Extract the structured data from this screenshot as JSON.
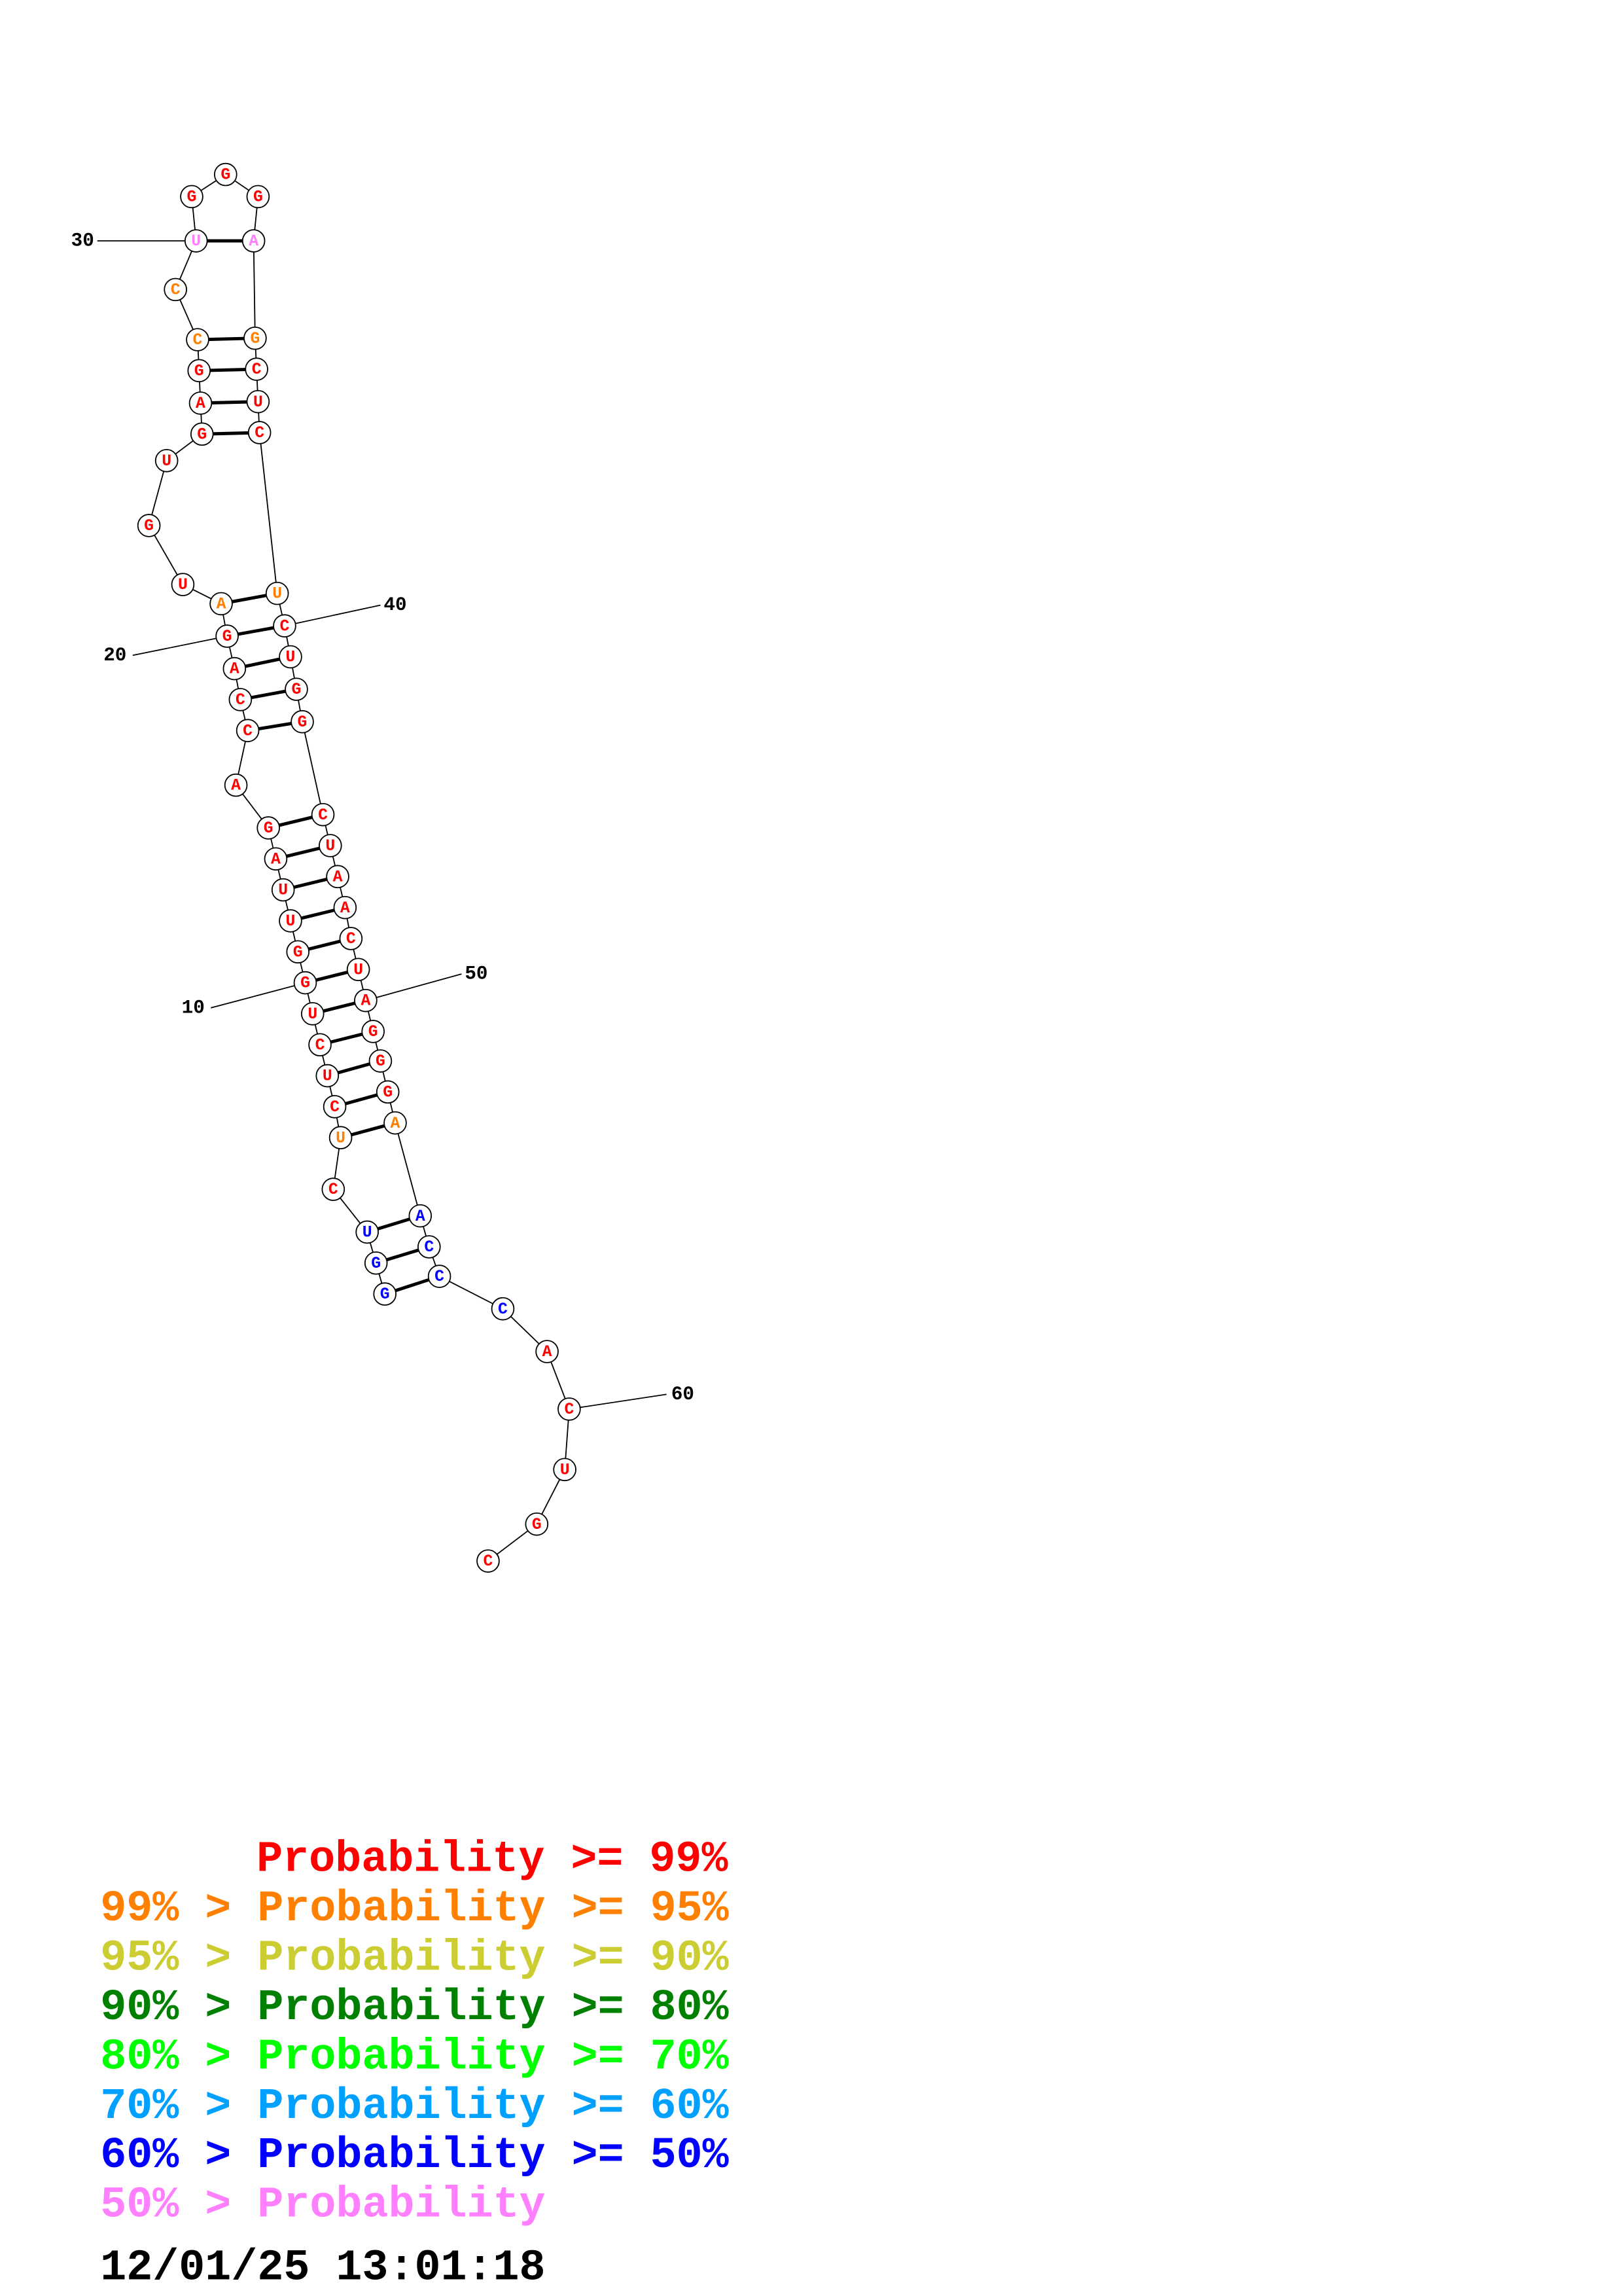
{
  "nodes": [
    {
      "base": "G",
      "color": "#0000ff"
    },
    {
      "base": "G",
      "color": "#0000ff"
    },
    {
      "base": "U",
      "color": "#0000ff"
    },
    {
      "base": "C",
      "color": "#ff0000"
    },
    {
      "base": "U",
      "color": "#ff8000"
    },
    {
      "base": "C",
      "color": "#ff0000"
    },
    {
      "base": "U",
      "color": "#ff0000"
    },
    {
      "base": "C",
      "color": "#ff0000"
    },
    {
      "base": "U",
      "color": "#ff0000"
    },
    {
      "base": "G",
      "color": "#ff0000"
    },
    {
      "base": "G",
      "color": "#ff0000"
    },
    {
      "base": "U",
      "color": "#ff0000"
    },
    {
      "base": "U",
      "color": "#ff0000"
    },
    {
      "base": "A",
      "color": "#ff0000"
    },
    {
      "base": "G",
      "color": "#ff0000"
    },
    {
      "base": "A",
      "color": "#ff0000"
    },
    {
      "base": "C",
      "color": "#ff0000"
    },
    {
      "base": "C",
      "color": "#ff0000"
    },
    {
      "base": "A",
      "color": "#ff0000"
    },
    {
      "base": "G",
      "color": "#ff0000"
    },
    {
      "base": "A",
      "color": "#ff8000"
    },
    {
      "base": "U",
      "color": "#ff0000"
    },
    {
      "base": "G",
      "color": "#ff0000"
    },
    {
      "base": "U",
      "color": "#ff0000"
    },
    {
      "base": "G",
      "color": "#ff0000"
    },
    {
      "base": "A",
      "color": "#ff0000"
    },
    {
      "base": "G",
      "color": "#ff0000"
    },
    {
      "base": "C",
      "color": "#ff8000"
    },
    {
      "base": "C",
      "color": "#ff8000"
    },
    {
      "base": "U",
      "color": "#ff80ff"
    },
    {
      "base": "G",
      "color": "#ff0000"
    },
    {
      "base": "G",
      "color": "#ff0000"
    },
    {
      "base": "G",
      "color": "#ff0000"
    },
    {
      "base": "A",
      "color": "#ff80ff"
    },
    {
      "base": "G",
      "color": "#ff8000"
    },
    {
      "base": "C",
      "color": "#ff0000"
    },
    {
      "base": "U",
      "color": "#ff0000"
    },
    {
      "base": "C",
      "color": "#ff0000"
    },
    {
      "base": "U",
      "color": "#ff8000"
    },
    {
      "base": "C",
      "color": "#ff0000"
    },
    {
      "base": "U",
      "color": "#ff0000"
    },
    {
      "base": "G",
      "color": "#ff0000"
    },
    {
      "base": "G",
      "color": "#ff0000"
    },
    {
      "base": "C",
      "color": "#ff0000"
    },
    {
      "base": "U",
      "color": "#ff0000"
    },
    {
      "base": "A",
      "color": "#ff0000"
    },
    {
      "base": "A",
      "color": "#ff0000"
    },
    {
      "base": "C",
      "color": "#ff0000"
    },
    {
      "base": "U",
      "color": "#ff0000"
    },
    {
      "base": "A",
      "color": "#ff0000"
    },
    {
      "base": "G",
      "color": "#ff0000"
    },
    {
      "base": "G",
      "color": "#ff0000"
    },
    {
      "base": "G",
      "color": "#ff0000"
    },
    {
      "base": "A",
      "color": "#ff8000"
    },
    {
      "base": "A",
      "color": "#0000ff"
    },
    {
      "base": "C",
      "color": "#0000ff"
    },
    {
      "base": "C",
      "color": "#0000ff"
    },
    {
      "base": "C",
      "color": "#0000ff"
    },
    {
      "base": "A",
      "color": "#ff0000"
    },
    {
      "base": "C",
      "color": "#ff0000"
    },
    {
      "base": "U",
      "color": "#ff0000"
    },
    {
      "base": "G",
      "color": "#ff0000"
    },
    {
      "base": "C",
      "color": "#ff0000"
    }
  ],
  "position_labels": [
    "10",
    "20",
    "30",
    "40",
    "50",
    "60"
  ],
  "legend": [
    {
      "text": "Probability >= 99%",
      "color": "#ff0000"
    },
    {
      "text": "99% > Probability >= 95%",
      "color": "#ff8000"
    },
    {
      "text": "95% > Probability >= 90%",
      "color": "#cccc33"
    },
    {
      "text": "90% > Probability >= 80%",
      "color": "#008000"
    },
    {
      "text": "80% > Probability >= 70%",
      "color": "#00ff00"
    },
    {
      "text": "70% > Probability >= 60%",
      "color": "#00a0ff"
    },
    {
      "text": "60% > Probability >= 50%",
      "color": "#0000ff"
    },
    {
      "text": "50% > Probability",
      "color": "#ff80ff"
    }
  ],
  "timestamp": "12/01/25 13:01:18"
}
